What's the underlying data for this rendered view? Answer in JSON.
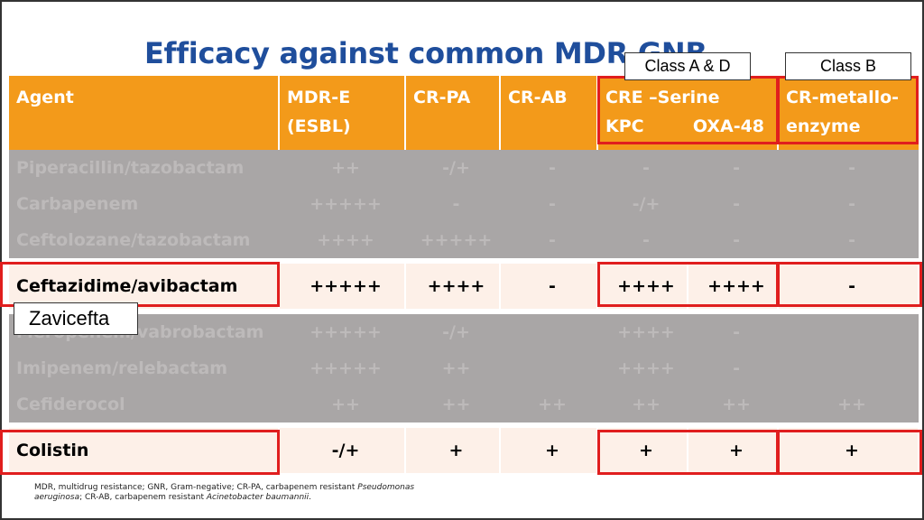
{
  "title": "Efficacy against common MDR GNB",
  "header": {
    "agent": "Agent",
    "mdr_e_1": "MDR-E",
    "mdr_e_2": "(ESBL)",
    "cr_pa": "CR-PA",
    "cr_ab": "CR-AB",
    "cre_serine": "CRE –Serine",
    "kpc": "KPC",
    "oxa48": "OXA-48",
    "cr_metallo_1": "CR-metallo-",
    "cr_metallo_2": "enzyme"
  },
  "callouts": {
    "class_ad": "Class A & D",
    "class_b": "Class B",
    "zavicefta": "Zavicefta"
  },
  "rows": [
    {
      "agent": "Piperacillin/tazobactam",
      "mdr_e": "++",
      "cr_pa": "-/+",
      "cr_ab": "-",
      "kpc": "-",
      "oxa48": "-",
      "metallo": "-",
      "highlight": false
    },
    {
      "agent": "Carbapenem",
      "mdr_e": "+++++",
      "cr_pa": "-",
      "cr_ab": "-",
      "kpc": "-/+",
      "oxa48": "-",
      "metallo": "-",
      "highlight": false
    },
    {
      "agent": "Ceftolozane/tazobactam",
      "mdr_e": "++++",
      "cr_pa": "+++++",
      "cr_ab": "-",
      "kpc": "-",
      "oxa48": "-",
      "metallo": "-",
      "highlight": false
    },
    {
      "agent": "Ceftazidime/avibactam",
      "mdr_e": "+++++",
      "cr_pa": "++++",
      "cr_ab": "-",
      "kpc": "++++",
      "oxa48": "++++",
      "metallo": "-",
      "highlight": true
    },
    {
      "agent": "Meropenem/vabrobactam",
      "mdr_e": "+++++",
      "cr_pa": "-/+",
      "cr_ab": "",
      "kpc": "++++",
      "oxa48": "-",
      "metallo": "",
      "highlight": false
    },
    {
      "agent": "Imipenem/relebactam",
      "mdr_e": "+++++",
      "cr_pa": "++",
      "cr_ab": "",
      "kpc": "++++",
      "oxa48": "-",
      "metallo": "",
      "highlight": false
    },
    {
      "agent": "Cefiderocol",
      "mdr_e": "++",
      "cr_pa": "++",
      "cr_ab": "++",
      "kpc": "++",
      "oxa48": "++",
      "metallo": "++",
      "highlight": false
    },
    {
      "agent": "Colistin",
      "mdr_e": "-/+",
      "cr_pa": "+",
      "cr_ab": "+",
      "kpc": "+",
      "oxa48": "+",
      "metallo": "+",
      "highlight": true
    }
  ],
  "footnote": {
    "line1_a": "MDR, multidrug resistance; GNR, Gram-negative; CR-PA, carbapenem resistant ",
    "line1_i": "Pseudomonas",
    "line2_i": "aeruginosa",
    "line2_b": "; CR-AB, carbapenem resistant ",
    "line2_i2": "Acinetobacter baumannii",
    "line2_end": "."
  },
  "colors": {
    "header_orange": "#f39a1a",
    "title_blue": "#1f4e9c",
    "highlight_red": "#e01e1e",
    "dim_gray": "#a9a6a6"
  }
}
